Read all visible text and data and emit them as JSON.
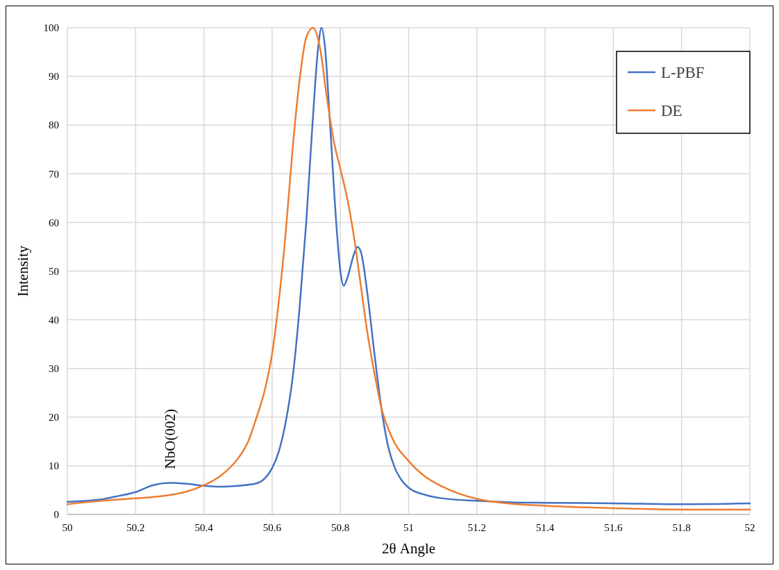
{
  "chart_data": {
    "type": "line",
    "xlabel": "2θ Angle",
    "ylabel": "Intensity",
    "xlim": [
      50,
      52
    ],
    "xticks": [
      50,
      50.2,
      50.4,
      50.6,
      50.8,
      51,
      51.2,
      51.4,
      51.6,
      51.8,
      52
    ],
    "ylim": [
      0,
      100
    ],
    "yticks": [
      0,
      10,
      20,
      30,
      40,
      50,
      60,
      70,
      80,
      90,
      100
    ],
    "grid": true,
    "legend": "top right",
    "marker": "none",
    "line_style": "solid",
    "annotations": [
      {
        "text": "NbO(002)",
        "x": 50.3,
        "y": 6.5
      }
    ],
    "series": [
      {
        "name": "L-PBF",
        "color": "#4472c4",
        "x": [
          50,
          50.1,
          50.15,
          50.2,
          50.25,
          50.3,
          50.35,
          50.4,
          50.45,
          50.5,
          50.55,
          50.58,
          50.6,
          50.62,
          50.64,
          50.66,
          50.68,
          50.7,
          50.72,
          50.735,
          50.745,
          50.755,
          50.77,
          50.79,
          50.8,
          50.81,
          50.82,
          50.84,
          50.85,
          50.86,
          50.88,
          50.9,
          50.92,
          50.94,
          50.96,
          50.98,
          51,
          51.05,
          51.1,
          51.2,
          51.3,
          51.4,
          51.6,
          51.8,
          52
        ],
        "values": [
          2.6,
          3.1,
          3.8,
          4.6,
          6,
          6.5,
          6.3,
          5.9,
          5.7,
          5.9,
          6.3,
          7.5,
          9.5,
          13,
          19,
          28,
          42,
          60,
          82,
          96,
          100,
          96,
          80,
          58,
          50,
          47,
          48.5,
          53.5,
          55,
          54,
          45,
          33,
          22,
          14,
          9.5,
          7,
          5.5,
          4,
          3.3,
          2.8,
          2.5,
          2.4,
          2.3,
          2.1,
          2.3
        ]
      },
      {
        "name": "DE",
        "color": "#ed7d31",
        "x": [
          50,
          50.1,
          50.2,
          50.3,
          50.35,
          50.4,
          50.45,
          50.5,
          50.53,
          50.55,
          50.58,
          50.6,
          50.62,
          50.64,
          50.66,
          50.68,
          50.7,
          50.72,
          50.74,
          50.76,
          50.78,
          50.8,
          50.82,
          50.84,
          50.86,
          50.88,
          50.9,
          50.92,
          50.95,
          51,
          51.05,
          51.1,
          51.2,
          51.3,
          51.4,
          51.6,
          51.8,
          52
        ],
        "values": [
          2.1,
          2.8,
          3.3,
          4,
          4.7,
          6,
          8,
          11.5,
          15,
          19,
          26,
          33,
          44,
          58,
          75,
          89,
          98,
          100,
          96,
          86,
          77,
          71,
          65,
          57,
          47,
          37,
          29,
          22,
          16,
          11,
          7.7,
          5.7,
          3.2,
          2.2,
          1.8,
          1.3,
          1,
          1
        ]
      }
    ]
  }
}
